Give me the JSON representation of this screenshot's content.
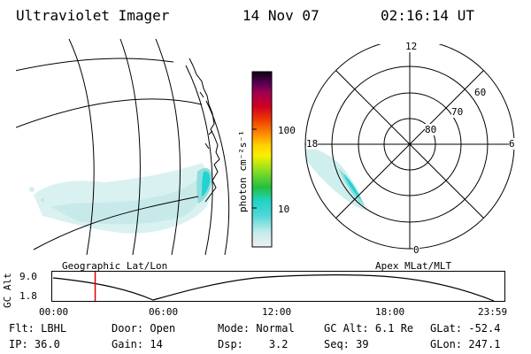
{
  "header": {
    "instrument": "Ultraviolet Imager",
    "date": "14 Nov 07",
    "time": "02:16:14 UT"
  },
  "geo_panel": {
    "caption": "Geographic Lat/Lon"
  },
  "colorbar": {
    "unit_label": "photon cm⁻²s⁻¹",
    "ticks": [
      "100",
      "10"
    ]
  },
  "polar_panel": {
    "caption": "Apex MLat/MLT",
    "mlt_labels": {
      "top": "12",
      "left": "18",
      "right": "6",
      "bottom": "0"
    },
    "lat_labels": [
      "60",
      "70",
      "80"
    ]
  },
  "altitude_strip": {
    "axis_title": "GC Alt",
    "y_ticks": [
      "9.0",
      "1.8"
    ],
    "x_ticks": [
      "00:00",
      "06:00",
      "12:00",
      "18:00",
      "23:59"
    ],
    "current_fraction": 0.095
  },
  "info": {
    "row1": [
      {
        "key": "Flt:",
        "value": "LBHL"
      },
      {
        "key": "Door:",
        "value": "Open"
      },
      {
        "key": "Mode:",
        "value": "Normal"
      },
      {
        "key": "GC Alt:",
        "value": "6.1 Re"
      },
      {
        "key": "GLat:",
        "value": "-52.4"
      }
    ],
    "row2": [
      {
        "key": "IP:",
        "value": "36.0"
      },
      {
        "key": "Gain:",
        "value": "14"
      },
      {
        "key": "Dsp:",
        "value": "3.2"
      },
      {
        "key": "Seq:",
        "value": "39"
      },
      {
        "key": "GLon:",
        "value": "247.1"
      }
    ]
  },
  "colors": {
    "marker": "#e00000",
    "aurora_faint": "#cfeeee",
    "aurora_bright": "#22d3d3"
  }
}
